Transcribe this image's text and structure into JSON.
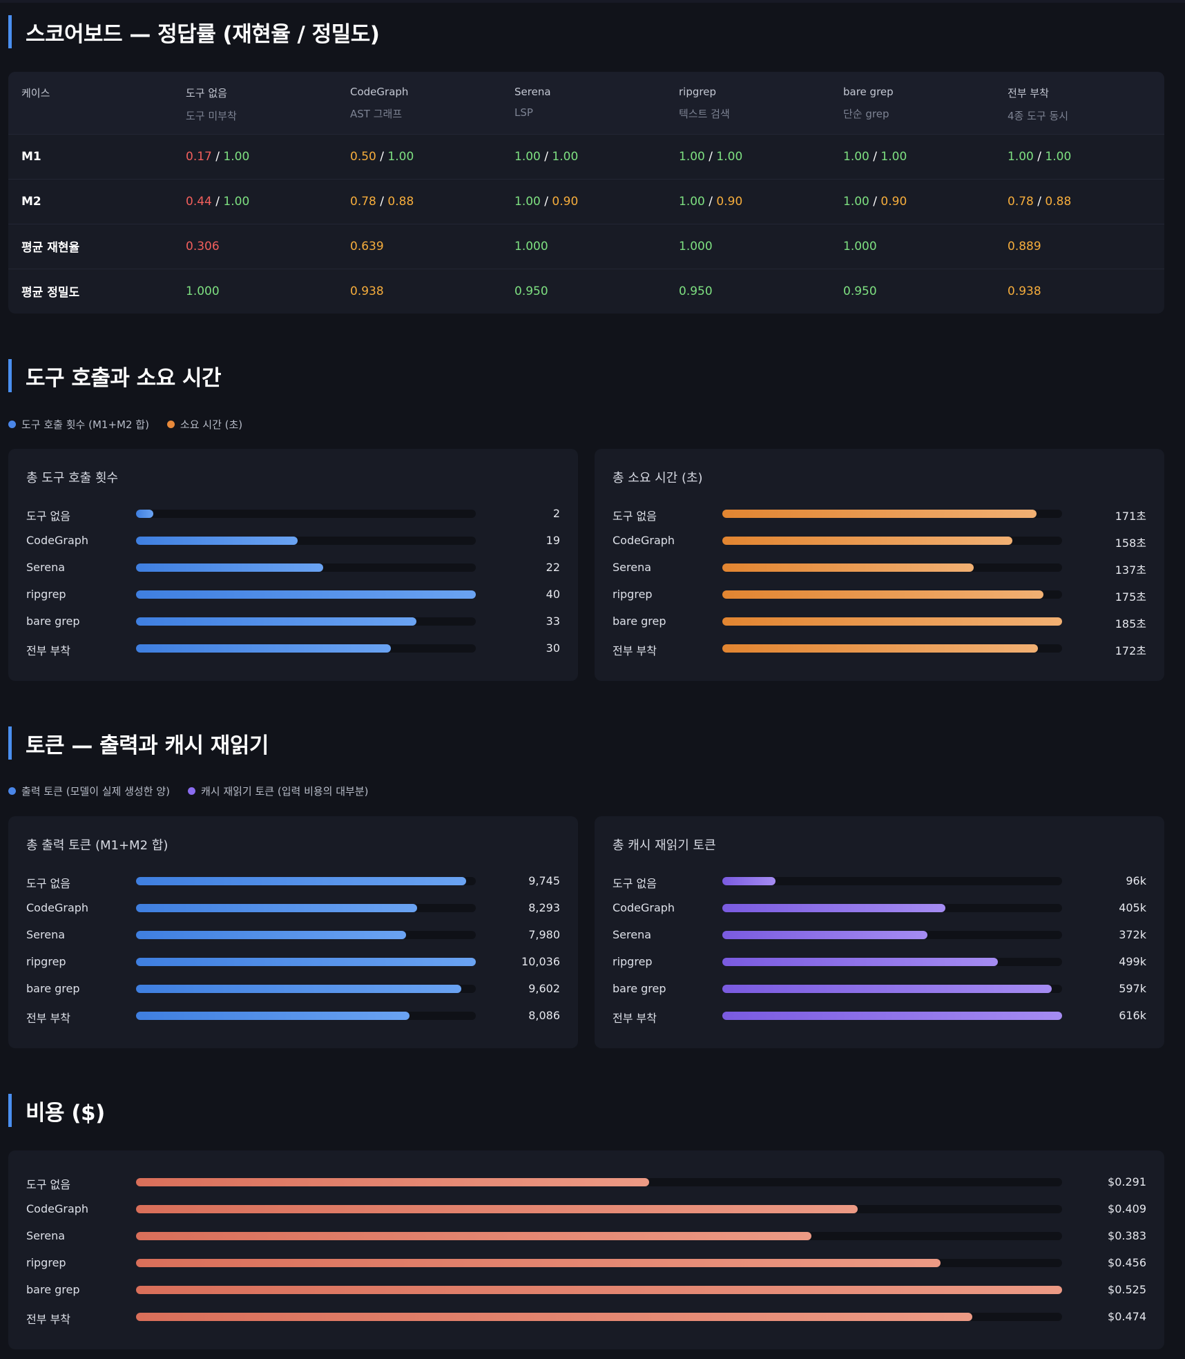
{
  "scoreboard": {
    "title": "스코어보드 — 정답률 (재현율 / 정밀도)",
    "header": [
      {
        "name": "케이스",
        "sub": ""
      },
      {
        "name": "도구 없음",
        "sub": "도구 미부착"
      },
      {
        "name": "CodeGraph",
        "sub": "AST 그래프"
      },
      {
        "name": "Serena",
        "sub": "LSP"
      },
      {
        "name": "ripgrep",
        "sub": "텍스트 검색"
      },
      {
        "name": "bare grep",
        "sub": "단순 grep"
      },
      {
        "name": "전부 부착",
        "sub": "4종 도구 동시"
      }
    ],
    "rows": [
      {
        "label": "M1",
        "cells": [
          {
            "recall": "0.17",
            "recall_color": "red",
            "precision": "1.00",
            "precision_color": "green"
          },
          {
            "recall": "0.50",
            "recall_color": "orange",
            "precision": "1.00",
            "precision_color": "green"
          },
          {
            "recall": "1.00",
            "recall_color": "green",
            "precision": "1.00",
            "precision_color": "green"
          },
          {
            "recall": "1.00",
            "recall_color": "green",
            "precision": "1.00",
            "precision_color": "green"
          },
          {
            "recall": "1.00",
            "recall_color": "green",
            "precision": "1.00",
            "precision_color": "green"
          },
          {
            "recall": "1.00",
            "recall_color": "green",
            "precision": "1.00",
            "precision_color": "green"
          }
        ]
      },
      {
        "label": "M2",
        "cells": [
          {
            "recall": "0.44",
            "recall_color": "red",
            "precision": "1.00",
            "precision_color": "green"
          },
          {
            "recall": "0.78",
            "recall_color": "orange",
            "precision": "0.88",
            "precision_color": "orange"
          },
          {
            "recall": "1.00",
            "recall_color": "green",
            "precision": "0.90",
            "precision_color": "orange"
          },
          {
            "recall": "1.00",
            "recall_color": "green",
            "precision": "0.90",
            "precision_color": "orange"
          },
          {
            "recall": "1.00",
            "recall_color": "green",
            "precision": "0.90",
            "precision_color": "orange"
          },
          {
            "recall": "0.78",
            "recall_color": "orange",
            "precision": "0.88",
            "precision_color": "orange"
          }
        ]
      }
    ],
    "avg_rows": [
      {
        "label": "평균 재현율",
        "cells": [
          {
            "value": "0.306",
            "color": "red"
          },
          {
            "value": "0.639",
            "color": "orange"
          },
          {
            "value": "1.000",
            "color": "green"
          },
          {
            "value": "1.000",
            "color": "green"
          },
          {
            "value": "1.000",
            "color": "green"
          },
          {
            "value": "0.889",
            "color": "orange"
          }
        ]
      },
      {
        "label": "평균 정밀도",
        "cells": [
          {
            "value": "1.000",
            "color": "green"
          },
          {
            "value": "0.938",
            "color": "orange"
          },
          {
            "value": "0.950",
            "color": "green"
          },
          {
            "value": "0.950",
            "color": "green"
          },
          {
            "value": "0.950",
            "color": "green"
          },
          {
            "value": "0.938",
            "color": "orange"
          }
        ]
      }
    ]
  },
  "calls_section": {
    "title": "도구 호출과 소요 시간",
    "legend": [
      {
        "label": "도구 호출 횟수 (M1+M2 합)",
        "color": "#4a86e8"
      },
      {
        "label": "소요 시간 (초)",
        "color": "#e8893a"
      }
    ]
  },
  "tokens_section": {
    "title": "토큰 — 출력과 캐시 재읽기",
    "legend": [
      {
        "label": "출력 토큰 (모델이 실제 생성한 양)",
        "color": "#4a86e8"
      },
      {
        "label": "캐시 재읽기 토큰 (입력 비용의 대부분)",
        "color": "#8a6cf0"
      }
    ]
  },
  "cost_section": {
    "title": "비용 ($)"
  },
  "chart_data": [
    {
      "type": "bar",
      "orientation": "horizontal",
      "title": "총 도구 호출 횟수",
      "categories": [
        "도구 없음",
        "CodeGraph",
        "Serena",
        "ripgrep",
        "bare grep",
        "전부 부착"
      ],
      "values": [
        2,
        19,
        22,
        40,
        33,
        30
      ],
      "labels": [
        "2",
        "19",
        "22",
        "40",
        "33",
        "30"
      ],
      "color": "blue"
    },
    {
      "type": "bar",
      "orientation": "horizontal",
      "title": "총 소요 시간 (초)",
      "categories": [
        "도구 없음",
        "CodeGraph",
        "Serena",
        "ripgrep",
        "bare grep",
        "전부 부착"
      ],
      "values": [
        171,
        158,
        137,
        175,
        185,
        172
      ],
      "labels": [
        "171초",
        "158초",
        "137초",
        "175초",
        "185초",
        "172초"
      ],
      "color": "orange"
    },
    {
      "type": "bar",
      "orientation": "horizontal",
      "title": "총 출력 토큰 (M1+M2 합)",
      "categories": [
        "도구 없음",
        "CodeGraph",
        "Serena",
        "ripgrep",
        "bare grep",
        "전부 부착"
      ],
      "values": [
        9745,
        8293,
        7980,
        10036,
        9602,
        8086
      ],
      "labels": [
        "9,745",
        "8,293",
        "7,980",
        "10,036",
        "9,602",
        "8,086"
      ],
      "color": "blue"
    },
    {
      "type": "bar",
      "orientation": "horizontal",
      "title": "총 캐시 재읽기 토큰",
      "categories": [
        "도구 없음",
        "CodeGraph",
        "Serena",
        "ripgrep",
        "bare grep",
        "전부 부착"
      ],
      "values": [
        96000,
        405000,
        372000,
        499000,
        597000,
        616000
      ],
      "labels": [
        "96k",
        "405k",
        "372k",
        "499k",
        "597k",
        "616k"
      ],
      "color": "purple"
    },
    {
      "type": "bar",
      "orientation": "horizontal",
      "title": "",
      "categories": [
        "도구 없음",
        "CodeGraph",
        "Serena",
        "ripgrep",
        "bare grep",
        "전부 부착"
      ],
      "values": [
        0.291,
        0.409,
        0.383,
        0.456,
        0.525,
        0.474
      ],
      "labels": [
        "$0.291",
        "$0.409",
        "$0.383",
        "$0.456",
        "$0.525",
        "$0.474"
      ],
      "color": "salmon"
    }
  ]
}
